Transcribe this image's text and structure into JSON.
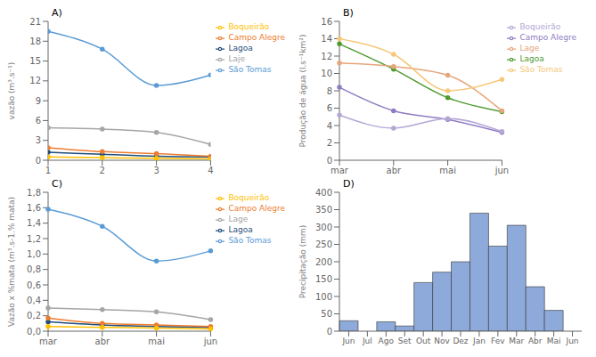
{
  "chart_data": [
    {
      "type": "line",
      "title": "A)",
      "y_label": "vazão (m³.s⁻¹)",
      "x": [
        1,
        2,
        3,
        4
      ],
      "xlim": [
        1,
        4
      ],
      "xticks": [
        1,
        2,
        3,
        4
      ],
      "ylim": [
        0,
        21
      ],
      "yticks": [
        0,
        3,
        6,
        9,
        12,
        15,
        18,
        21
      ],
      "grid": false,
      "legend": "upper right",
      "marker": "circle",
      "series": [
        {
          "name": "Lagoa",
          "color": "#1f4e79",
          "values": [
            1.2,
            0.9,
            0.6,
            0.5
          ]
        },
        {
          "name": "Campo Alegre",
          "color": "#ed7d31",
          "values": [
            1.9,
            1.3,
            1.0,
            0.6
          ]
        },
        {
          "name": "Laje",
          "color": "#a5a5a5",
          "values": [
            4.9,
            4.7,
            4.2,
            2.4
          ]
        },
        {
          "name": "Boqueirão",
          "color": "#ffc000",
          "values": [
            0.5,
            0.4,
            0.3,
            0.2
          ]
        },
        {
          "name": "São Tomas",
          "color": "#5b9bd5",
          "values": [
            19.5,
            16.8,
            11.3,
            12.9
          ]
        }
      ]
    },
    {
      "type": "line",
      "title": "B)",
      "y_label": "Produção de água (l.s⁻¹km²)",
      "categories": [
        "mar",
        "abr",
        "mai",
        "jun"
      ],
      "ylim": [
        0,
        16
      ],
      "yticks": [
        0,
        2,
        4,
        6,
        8,
        10,
        12,
        14,
        16
      ],
      "grid": false,
      "legend": "upper right",
      "marker": "circle",
      "series": [
        {
          "name": "Lagoa",
          "color": "#4e9a2f",
          "values": [
            13.4,
            10.5,
            7.2,
            5.6
          ]
        },
        {
          "name": "Campo Alegre",
          "color": "#8e7cc3",
          "values": [
            8.4,
            5.7,
            4.7,
            3.2
          ]
        },
        {
          "name": "Lage",
          "color": "#e6a57a",
          "values": [
            11.2,
            10.8,
            9.8,
            5.7
          ]
        },
        {
          "name": "Boqueirão",
          "color": "#b4a7d6",
          "values": [
            5.2,
            3.7,
            4.8,
            3.3
          ]
        },
        {
          "name": "São Tomas",
          "color": "#f6c87a",
          "values": [
            14.0,
            12.2,
            8.0,
            9.3
          ]
        }
      ]
    },
    {
      "type": "line",
      "title": "C)",
      "y_label": "Vazão x %mata (m³.s-1.% mata)",
      "categories": [
        "mar",
        "abr",
        "mai",
        "jun"
      ],
      "ylim": [
        0,
        1.8
      ],
      "yticks": [
        {
          "value": 0,
          "label": "0,0"
        },
        {
          "value": 0.2,
          "label": "0,2"
        },
        {
          "value": 0.4,
          "label": "0,4"
        },
        {
          "value": 0.6,
          "label": "0,6"
        },
        {
          "value": 0.8,
          "label": "0,8"
        },
        {
          "value": 1.0,
          "label": "1,0"
        },
        {
          "value": 1.2,
          "label": "1,2"
        },
        {
          "value": 1.4,
          "label": "1,4"
        },
        {
          "value": 1.6,
          "label": "1,6"
        },
        {
          "value": 1.8,
          "label": "1,8"
        }
      ],
      "grid": false,
      "legend": "upper right",
      "marker": "circle",
      "series": [
        {
          "name": "Lagoa",
          "color": "#1f4e79",
          "values": [
            0.12,
            0.08,
            0.06,
            0.05
          ]
        },
        {
          "name": "Campo Alegre",
          "color": "#ed7d31",
          "values": [
            0.17,
            0.1,
            0.08,
            0.06
          ]
        },
        {
          "name": "Lage",
          "color": "#a5a5a5",
          "values": [
            0.3,
            0.28,
            0.25,
            0.15
          ]
        },
        {
          "name": "Boqueirão",
          "color": "#ffc000",
          "values": [
            0.06,
            0.05,
            0.04,
            0.03
          ]
        },
        {
          "name": "São Tomas",
          "color": "#5b9bd5",
          "values": [
            1.58,
            1.36,
            0.91,
            1.04
          ]
        }
      ]
    },
    {
      "type": "bar",
      "title": "D)",
      "y_label": "Precipitação (mm)",
      "categories": [
        "Jun",
        "Jul",
        "Ago",
        "Set",
        "Out",
        "Nov",
        "Dez",
        "Jan",
        "Fev",
        "Mar",
        "Abr",
        "Mai",
        "Jun"
      ],
      "values": [
        30,
        0,
        27,
        15,
        140,
        170,
        200,
        340,
        245,
        305,
        128,
        60,
        0
      ],
      "color": "#8eaadb",
      "ylim": [
        0,
        400
      ],
      "yticks": [
        0,
        50,
        100,
        150,
        200,
        250,
        300,
        350,
        400
      ],
      "grid": false
    }
  ]
}
